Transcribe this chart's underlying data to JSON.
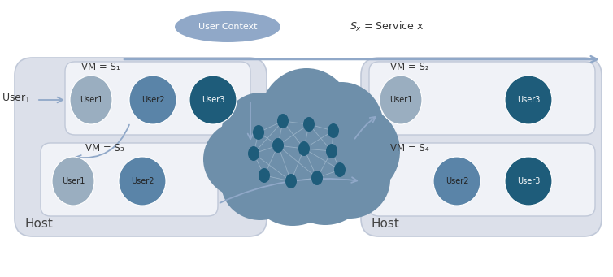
{
  "fig_width": 7.54,
  "fig_height": 3.41,
  "bg_color": "#ffffff",
  "host_box_color": "#dce0ea",
  "host_box_edge": "#c0c8d8",
  "vm_box_color": "#f0f2f7",
  "vm_box_edge": "#c0c8d8",
  "user_light_color": "#9aaec0",
  "user_mid_color": "#5a84a8",
  "user_dark_color": "#1e5c7a",
  "cloud_color": "#6e8faa",
  "cloud_inner_color": "#8aaabf",
  "arrow_color": "#90a8c8",
  "legend_oval_color": "#90a8c8",
  "node_color": "#1e5c7a",
  "node_edge_color": "#4a7a9a",
  "edge_color": "#a0b8cc",
  "host_label": "Host",
  "user1_label": "User1",
  "user2_label": "User2",
  "user3_label": "User3",
  "vm1_label": "VM = S₁",
  "vm2_label": "VM = S₂",
  "vm3_label": "VM = S₃",
  "vm4_label": "VM = S₄",
  "legend_label": "User Context",
  "service_label": "Sₓ = Service x"
}
